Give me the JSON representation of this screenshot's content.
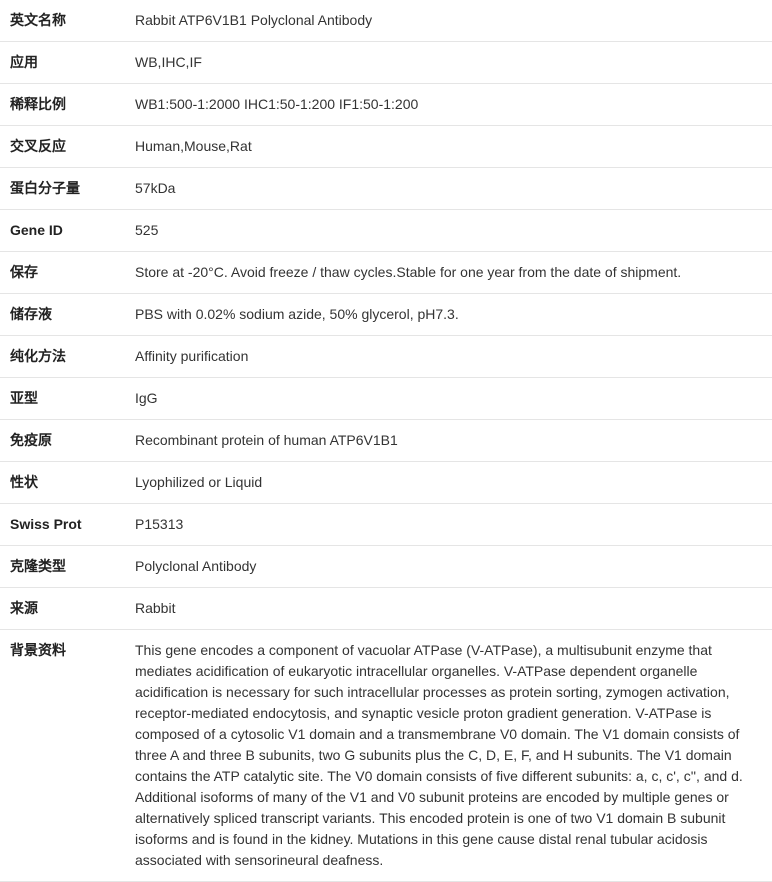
{
  "rows": [
    {
      "label": "英文名称",
      "value": "Rabbit ATP6V1B1 Polyclonal Antibody"
    },
    {
      "label": "应用",
      "value": "WB,IHC,IF"
    },
    {
      "label": "稀释比例",
      "value": "WB1:500-1:2000 IHC1:50-1:200 IF1:50-1:200"
    },
    {
      "label": "交叉反应",
      "value": "Human,Mouse,Rat"
    },
    {
      "label": "蛋白分子量",
      "value": "57kDa"
    },
    {
      "label": "Gene ID",
      "value": "525"
    },
    {
      "label": "保存",
      "value": "Store at -20°C. Avoid freeze / thaw cycles.Stable for one year from the date of shipment."
    },
    {
      "label": "储存液",
      "value": "PBS with 0.02% sodium azide, 50% glycerol, pH7.3."
    },
    {
      "label": "纯化方法",
      "value": "Affinity purification"
    },
    {
      "label": "亚型",
      "value": "IgG"
    },
    {
      "label": "免疫原",
      "value": "Recombinant protein of human ATP6V1B1"
    },
    {
      "label": "性状",
      "value": "Lyophilized or Liquid"
    },
    {
      "label": "Swiss Prot",
      "value": "P15313"
    },
    {
      "label": "克隆类型",
      "value": "Polyclonal Antibody"
    },
    {
      "label": "来源",
      "value": "Rabbit"
    },
    {
      "label": "背景资料",
      "value": "This gene encodes a component of vacuolar ATPase (V-ATPase), a multisubunit enzyme that mediates acidification of eukaryotic intracellular organelles. V-ATPase dependent organelle acidification is necessary for such intracellular processes as protein sorting, zymogen activation, receptor-mediated endocytosis, and synaptic vesicle proton gradient generation. V-ATPase is composed of a cytosolic V1 domain and a transmembrane V0 domain. The V1 domain consists of three A and three B subunits, two G subunits plus the C, D, E, F, and H subunits. The V1 domain contains the ATP catalytic site. The V0 domain consists of five different subunits: a, c, c', c'', and d. Additional isoforms of many of the V1 and V0 subunit proteins are encoded by multiple genes or alternatively spliced transcript variants. This encoded protein is one of two V1 domain B subunit isoforms and is found in the kidney. Mutations in this gene cause distal renal tubular acidosis associated with sensorineural deafness."
    }
  ]
}
